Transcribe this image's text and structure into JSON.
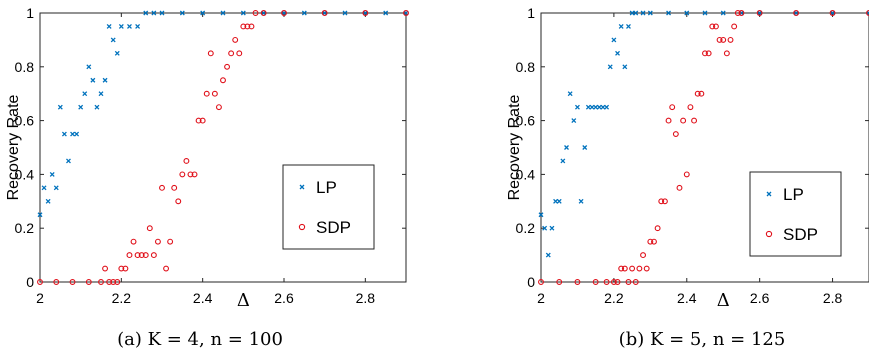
{
  "chart_data": [
    {
      "type": "scatter",
      "caption": "(a)  K = 4, n = 100",
      "xlabel": "Δ",
      "ylabel": "Recovery Rate",
      "xlim": [
        2,
        2.9
      ],
      "ylim": [
        0,
        1
      ],
      "xticks": [
        "2",
        "2.2",
        "2.4",
        "2.6",
        "2.8"
      ],
      "yticks": [
        "0",
        "0.2",
        "0.4",
        "0.6",
        "0.8",
        "1"
      ],
      "legend_position": "right-middle",
      "series": [
        {
          "name": "LP",
          "marker": "x",
          "color": "#0072BD",
          "x": [
            2.0,
            2.01,
            2.02,
            2.03,
            2.04,
            2.05,
            2.06,
            2.07,
            2.08,
            2.09,
            2.1,
            2.11,
            2.12,
            2.13,
            2.14,
            2.15,
            2.16,
            2.17,
            2.18,
            2.19,
            2.2,
            2.22,
            2.24,
            2.26,
            2.28,
            2.3,
            2.35,
            2.4,
            2.45,
            2.5,
            2.55,
            2.6,
            2.65,
            2.7,
            2.75,
            2.8,
            2.85,
            2.9
          ],
          "y": [
            0.25,
            0.35,
            0.3,
            0.4,
            0.35,
            0.65,
            0.55,
            0.45,
            0.55,
            0.55,
            0.65,
            0.7,
            0.8,
            0.75,
            0.65,
            0.7,
            0.75,
            0.95,
            0.9,
            0.85,
            0.95,
            0.95,
            0.95,
            1,
            1,
            1,
            1,
            1,
            1,
            1,
            1,
            1,
            1,
            1,
            1,
            1,
            1,
            1
          ]
        },
        {
          "name": "SDP",
          "marker": "o",
          "color": "#E0101A",
          "x": [
            2.0,
            2.04,
            2.08,
            2.12,
            2.15,
            2.16,
            2.17,
            2.18,
            2.19,
            2.2,
            2.21,
            2.22,
            2.23,
            2.24,
            2.25,
            2.26,
            2.27,
            2.28,
            2.29,
            2.3,
            2.31,
            2.32,
            2.33,
            2.34,
            2.35,
            2.36,
            2.37,
            2.38,
            2.39,
            2.4,
            2.41,
            2.42,
            2.43,
            2.44,
            2.45,
            2.46,
            2.47,
            2.48,
            2.49,
            2.5,
            2.51,
            2.52,
            2.53,
            2.55,
            2.6,
            2.7,
            2.8,
            2.9
          ],
          "y": [
            0,
            0,
            0,
            0,
            0,
            0.05,
            0,
            0,
            0,
            0.05,
            0.05,
            0.1,
            0.15,
            0.1,
            0.1,
            0.1,
            0.2,
            0.1,
            0.15,
            0.35,
            0.05,
            0.15,
            0.35,
            0.3,
            0.4,
            0.45,
            0.4,
            0.4,
            0.6,
            0.6,
            0.7,
            0.85,
            0.7,
            0.65,
            0.75,
            0.8,
            0.85,
            0.9,
            0.85,
            0.95,
            0.95,
            0.95,
            1,
            1,
            1,
            1,
            1,
            1
          ]
        }
      ]
    },
    {
      "type": "scatter",
      "caption": "(b)  K = 5, n = 125",
      "xlabel": "Δ",
      "ylabel": "Recovery Rate",
      "xlim": [
        2,
        2.9
      ],
      "ylim": [
        0,
        1
      ],
      "xticks": [
        "2",
        "2.2",
        "2.4",
        "2.6",
        "2.8"
      ],
      "yticks": [
        "0",
        "0.2",
        "0.4",
        "0.6",
        "0.8",
        "1"
      ],
      "legend_position": "right-middle",
      "series": [
        {
          "name": "LP",
          "marker": "x",
          "color": "#0072BD",
          "x": [
            2.0,
            2.01,
            2.02,
            2.03,
            2.04,
            2.05,
            2.06,
            2.07,
            2.08,
            2.09,
            2.1,
            2.11,
            2.12,
            2.13,
            2.14,
            2.15,
            2.16,
            2.17,
            2.18,
            2.19,
            2.2,
            2.21,
            2.22,
            2.23,
            2.24,
            2.25,
            2.26,
            2.28,
            2.3,
            2.35,
            2.4,
            2.45,
            2.5,
            2.55,
            2.6,
            2.7,
            2.8,
            2.9
          ],
          "y": [
            0.25,
            0.2,
            0.1,
            0.2,
            0.3,
            0.3,
            0.45,
            0.5,
            0.7,
            0.6,
            0.65,
            0.3,
            0.5,
            0.65,
            0.65,
            0.65,
            0.65,
            0.65,
            0.65,
            0.8,
            0.9,
            0.85,
            0.95,
            0.8,
            0.95,
            1,
            1,
            1,
            1,
            1,
            1,
            1,
            1,
            1,
            1,
            1,
            1,
            1
          ]
        },
        {
          "name": "SDP",
          "marker": "o",
          "color": "#E0101A",
          "x": [
            2.0,
            2.05,
            2.1,
            2.15,
            2.18,
            2.2,
            2.21,
            2.22,
            2.23,
            2.24,
            2.25,
            2.26,
            2.27,
            2.28,
            2.29,
            2.3,
            2.31,
            2.32,
            2.33,
            2.34,
            2.35,
            2.36,
            2.37,
            2.38,
            2.39,
            2.4,
            2.41,
            2.42,
            2.43,
            2.44,
            2.45,
            2.46,
            2.47,
            2.48,
            2.49,
            2.5,
            2.51,
            2.52,
            2.53,
            2.54,
            2.55,
            2.6,
            2.7,
            2.8,
            2.9
          ],
          "y": [
            0,
            0,
            0,
            0,
            0,
            0,
            0,
            0.05,
            0.05,
            0,
            0.05,
            0,
            0.05,
            0.1,
            0.05,
            0.15,
            0.15,
            0.2,
            0.3,
            0.3,
            0.6,
            0.65,
            0.55,
            0.35,
            0.6,
            0.4,
            0.65,
            0.6,
            0.7,
            0.7,
            0.85,
            0.85,
            0.95,
            0.95,
            0.9,
            0.9,
            0.85,
            0.9,
            0.95,
            1,
            1,
            1,
            1,
            1,
            1
          ]
        }
      ]
    }
  ]
}
